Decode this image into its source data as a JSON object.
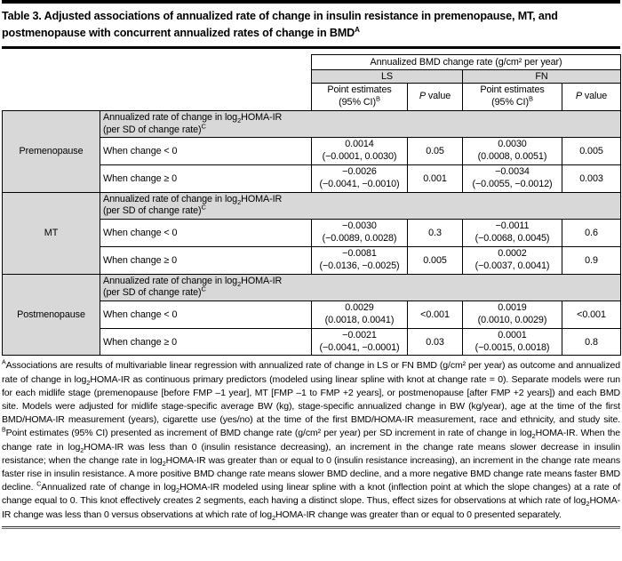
{
  "title_html": "Table 3. Adjusted associations of annualized rate of change in insulin resistance in premenopause, MT, and postmenopause with concurrent annualized rates of change in BMD<sup>A</sup>",
  "table": {
    "header": {
      "spanner": "Annualized BMD change rate (g/cm² per year)",
      "sites": [
        "LS",
        "FN"
      ],
      "point_estimates_html": "Point estimates<br>(95% CI)<sup>B</sup>",
      "p_value_html": "<i>P</i> value"
    },
    "groups": [
      {
        "stage": "Premenopause",
        "predictor_html": "Annualized rate of change in log<sub>2</sub>HOMA-IR<br>(per SD of change rate)<sup>C</sup>",
        "rows": [
          {
            "label": "When change < 0",
            "ls_est": "0.0014",
            "ls_ci": "(−0.0001, 0.0030)",
            "ls_p": "0.05",
            "fn_est": "0.0030",
            "fn_ci": "(0.0008, 0.0051)",
            "fn_p": "0.005"
          },
          {
            "label": "When change ≥ 0",
            "ls_est": "−0.0026",
            "ls_ci": "(−0.0041, −0.0010)",
            "ls_p": "0.001",
            "fn_est": "−0.0034",
            "fn_ci": "(−0.0055, −0.0012)",
            "fn_p": "0.003"
          }
        ]
      },
      {
        "stage": "MT",
        "predictor_html": "Annualized rate of change in log<sub>2</sub>HOMA-IR<br>(per SD of change rate)<sup>C</sup>",
        "rows": [
          {
            "label": "When change < 0",
            "ls_est": "−0.0030",
            "ls_ci": "(−0.0089, 0.0028)",
            "ls_p": "0.3",
            "fn_est": "−0.0011",
            "fn_ci": "(−0.0068, 0.0045)",
            "fn_p": "0.6"
          },
          {
            "label": "When change ≥ 0",
            "ls_est": "−0.0081",
            "ls_ci": "(−0.0136, −0.0025)",
            "ls_p": "0.005",
            "fn_est": "0.0002",
            "fn_ci": "(−0.0037, 0.0041)",
            "fn_p": "0.9"
          }
        ]
      },
      {
        "stage": "Postmenopause",
        "predictor_html": "Annualized rate of change in log<sub>2</sub>HOMA-IR<br>(per SD of change rate)<sup>C</sup>",
        "rows": [
          {
            "label": "When change < 0",
            "ls_est": "0.0029",
            "ls_ci": "(0.0018, 0.0041)",
            "ls_p": "<0.001",
            "fn_est": "0.0019",
            "fn_ci": "(0.0010, 0.0029)",
            "fn_p": "<0.001"
          },
          {
            "label": "When change ≥ 0",
            "ls_est": "−0.0021",
            "ls_ci": "(−0.0041, −0.0001)",
            "ls_p": "0.03",
            "fn_est": "0.0001",
            "fn_ci": "(−0.0015, 0.0018)",
            "fn_p": "0.8"
          }
        ]
      }
    ]
  },
  "footnotes": [
    {
      "marker": "A",
      "html": "Associations are results of multivariable linear regression with annualized rate of change in LS or FN BMD (g/cm² per year) as outcome and annualized rate of change in log<sub>2</sub>HOMA-IR as continuous primary predictors (modeled using linear spline with knot at change rate = 0). Separate models were run for each midlife stage (premenopause [before FMP –1 year], MT [FMP –1 to FMP +2 years], or postmenopause [after FMP +2 years]) and each BMD site. Models were adjusted for midlife stage-specific average BW (kg), stage-specific annualized change in BW (kg/year), age at the time of the first BMD/HOMA-IR measurement (years), cigarette use (yes/no) at the time of the first BMD/HOMA-IR measurement, race and ethnicity, and study site."
    },
    {
      "marker": "B",
      "html": "Point estimates (95% CI) presented as increment of BMD change rate (g/cm² per year) per SD increment in rate of change in log<sub>2</sub>HOMA-IR. When the change rate in log<sub>2</sub>HOMA-IR was less than 0 (insulin resistance decreasing), an increment in the change rate means slower decrease in insulin resistance; when the change rate in log<sub>2</sub>HOMA-IR was greater than or equal to 0 (insulin resistance increasing), an increment in the change rate means faster rise in insulin resistance. A more positive BMD change rate means slower BMD decline, and a more negative BMD change rate means faster BMD decline."
    },
    {
      "marker": "C",
      "html": "Annualized rate of change in log<sub>2</sub>HOMA-IR modeled using linear spline with a knot (inflection point at which the slope changes) at a rate of change equal to 0. This knot effectively creates 2 segments, each having a distinct slope. Thus, effect sizes for observations at which rate of log<sub>2</sub>HOMA-IR change was less than 0 versus observations at which rate of log<sub>2</sub>HOMA-IR change was greater than or equal to 0 presented separately."
    }
  ],
  "colors": {
    "shade": "#d8d8d8",
    "rule": "#000000"
  }
}
